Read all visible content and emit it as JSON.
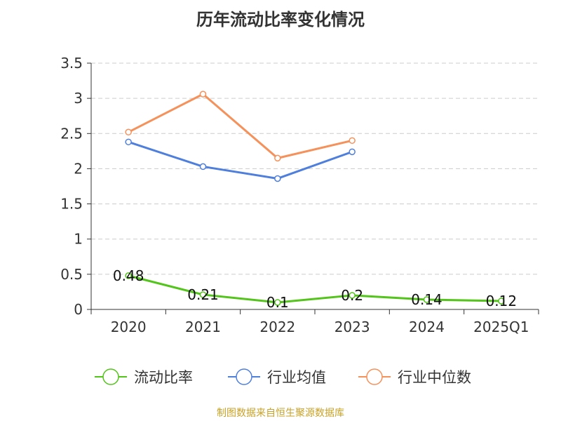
{
  "chart_data": {
    "type": "line",
    "title": "历年流动比率变化情况",
    "categories": [
      "2020",
      "2021",
      "2022",
      "2023",
      "2024",
      "2025Q1"
    ],
    "ylim": [
      0,
      3.5
    ],
    "yticks": [
      "0",
      "0.5",
      "1",
      "1.5",
      "2",
      "2.5",
      "3",
      "3.5"
    ],
    "grid": true,
    "legend_position": "bottom",
    "series": [
      {
        "name": "流动比率",
        "color": "#52c41a",
        "values": [
          0.48,
          0.21,
          0.1,
          0.2,
          0.14,
          0.12
        ],
        "labels": [
          "0.48",
          "0.21",
          "0.1",
          "0.2",
          "0.14",
          "0.12"
        ]
      },
      {
        "name": "行业均值",
        "color": "#4f7fdc",
        "values": [
          2.38,
          2.03,
          1.86,
          2.24,
          null,
          null
        ]
      },
      {
        "name": "行业中位数",
        "color": "#f5915a",
        "values": [
          2.52,
          3.06,
          2.15,
          2.4,
          null,
          null
        ]
      }
    ]
  },
  "footer": {
    "source": "制图数据来自恒生聚源数据库"
  }
}
